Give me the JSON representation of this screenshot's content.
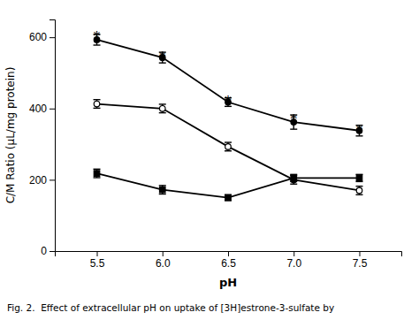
{
  "chart_data": {
    "type": "line",
    "x": [
      5.5,
      6.0,
      6.5,
      7.0,
      7.5
    ],
    "series": [
      {
        "color": "#000000",
        "marker": "circle",
        "values": [
          593,
          543,
          418,
          362,
          338
        ],
        "errors": [
          15,
          15,
          12,
          20,
          15
        ]
      },
      {
        "color": "#000000",
        "marker": "circle-open",
        "values": [
          413,
          400,
          293,
          200,
          170
        ],
        "errors": [
          12,
          12,
          12,
          12,
          12
        ]
      },
      {
        "color": "#000000",
        "marker": "square",
        "values": [
          218,
          172,
          150,
          205,
          205
        ],
        "errors": [
          12,
          12,
          8,
          10,
          10
        ]
      }
    ],
    "annotations": [
      {
        "text": "*",
        "x": 5.5,
        "y": 621
      },
      {
        "text": "*",
        "x": 6.0,
        "y": 565
      },
      {
        "text": "*",
        "x": 6.5,
        "y": 440
      },
      {
        "text": "*",
        "x": 7.0,
        "y": 390
      },
      {
        "text": "*",
        "x": 7.5,
        "y": 360
      }
    ],
    "x_label": "pH",
    "y_label": "C/M Ratio (μL/mg protein)",
    "caption": "Fig. 2.  Effect of extracellular pH on uptake of [3H]estrone-3-sulfate by",
    "xlim": [
      5.18,
      7.82
    ],
    "ylim": [
      0,
      650
    ],
    "xticks": [
      {
        "value": 5.5,
        "label": "5.5"
      },
      {
        "value": 6.0,
        "label": "6.0"
      },
      {
        "value": 6.5,
        "label": "6.5"
      },
      {
        "value": 7.0,
        "label": "7.0"
      },
      {
        "value": 7.5,
        "label": "7.5"
      }
    ],
    "yticks": [
      0,
      200,
      400,
      600
    ],
    "grid": false
  }
}
